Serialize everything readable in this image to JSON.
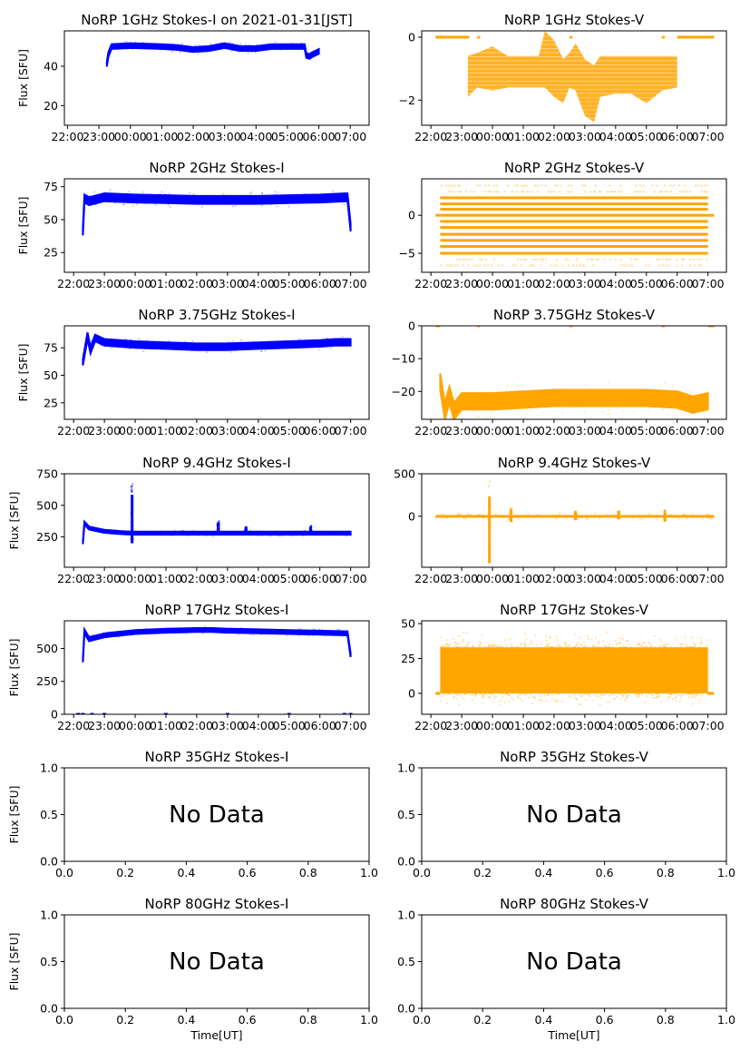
{
  "figure": {
    "date_label": "2021-01-31[JST]",
    "xlabel_bottom": "Time[UT]",
    "ylabel": "Flux [SFU]",
    "no_data_text": "No Data",
    "colors": {
      "stokes_i": "#0000ff",
      "stokes_v": "#ffa500",
      "axis": "#000000"
    }
  },
  "chart_data": [
    {
      "type": "scatter",
      "panel": "1GHz-I",
      "title": "NoRP 1GHz Stokes-I on 2021-01-31[JST]",
      "ylabel": "Flux [SFU]",
      "xlabel": "",
      "xticks": [
        "22:00",
        "23:00",
        "00:00",
        "01:00",
        "02:00",
        "03:00",
        "04:00",
        "05:00",
        "06:00",
        "07:00"
      ],
      "yticks": [
        20,
        40
      ],
      "ylim": [
        10,
        58
      ],
      "xlim_hours": [
        -0.1,
        9.6
      ],
      "series": [
        {
          "name": "Stokes-I",
          "x_hours": [
            1.25,
            1.3,
            1.4,
            2,
            3,
            3.5,
            4,
            4.5,
            5,
            5.5,
            6,
            6.5,
            7,
            7.5,
            7.55,
            7.6,
            7.7,
            7.8,
            8.0
          ],
          "y": [
            41,
            46,
            50,
            50.5,
            50,
            49.5,
            48.5,
            49,
            50.5,
            49,
            49,
            50,
            50,
            50,
            50,
            45.5,
            45,
            46,
            47.5
          ],
          "spread": 1.2
        }
      ]
    },
    {
      "type": "scatter",
      "panel": "1GHz-V",
      "title": "NoRP 1GHz Stokes-V",
      "ylabel": "",
      "xlabel": "",
      "xticks": [
        "22:00",
        "23:00",
        "00:00",
        "01:00",
        "02:00",
        "03:00",
        "04:00",
        "05:00",
        "06:00",
        "07:00"
      ],
      "yticks": [
        0,
        -2
      ],
      "ylim": [
        -2.8,
        0.2
      ],
      "xlim_hours": [
        -0.3,
        9.6
      ],
      "series": [
        {
          "name": "Stokes-V zero segments",
          "segments_hours": [
            [
              0.15,
              1.25
            ],
            [
              1.5,
              1.6
            ],
            [
              4.5,
              4.6
            ],
            [
              7.5,
              7.6
            ],
            [
              8.0,
              9.2
            ]
          ],
          "y": 0
        },
        {
          "name": "Stokes-V",
          "x_hours": [
            1.2,
            1.5,
            2,
            2.5,
            3,
            3.5,
            3.7,
            4,
            4.3,
            4.5,
            4.7,
            5,
            5.3,
            5.5,
            6,
            6.5,
            7,
            7.5,
            8.0
          ],
          "ymax": [
            -0.6,
            -0.5,
            -0.3,
            -0.6,
            -0.6,
            -0.6,
            0.2,
            -0.1,
            -0.7,
            -0.5,
            -0.2,
            -0.7,
            -0.9,
            -0.6,
            -0.6,
            -0.6,
            -0.6,
            -0.6,
            -0.6
          ],
          "ymin": [
            -1.9,
            -1.6,
            -1.7,
            -1.6,
            -1.6,
            -1.6,
            -1.6,
            -1.9,
            -2.1,
            -1.6,
            -1.7,
            -2.5,
            -2.7,
            -1.9,
            -1.8,
            -1.8,
            -2.1,
            -1.7,
            -1.6
          ]
        }
      ]
    },
    {
      "type": "scatter",
      "panel": "2GHz-I",
      "title": "NoRP 2GHz Stokes-I",
      "ylabel": "Flux [SFU]",
      "xlabel": "",
      "xticks": [
        "22:00",
        "23:00",
        "00:00",
        "01:00",
        "02:00",
        "03:00",
        "04:00",
        "05:00",
        "06:00",
        "07:00"
      ],
      "yticks": [
        25,
        50,
        75
      ],
      "ylim": [
        10,
        81
      ],
      "xlim_hours": [
        -0.3,
        9.6
      ],
      "series": [
        {
          "name": "Stokes-I",
          "x_hours": [
            0.3,
            0.35,
            0.5,
            1.0,
            2,
            3,
            4,
            5,
            6,
            7,
            8,
            8.9,
            9.0
          ],
          "y": [
            41,
            66,
            64,
            67,
            66,
            65.5,
            65,
            65,
            65,
            65.5,
            66,
            67,
            44
          ],
          "spread": 3
        }
      ]
    },
    {
      "type": "scatter",
      "panel": "2GHz-V",
      "title": "NoRP 2GHz Stokes-V",
      "ylabel": "",
      "xlabel": "",
      "xticks": [
        "22:00",
        "23:00",
        "00:00",
        "01:00",
        "02:00",
        "03:00",
        "04:00",
        "05:00",
        "06:00",
        "07:00"
      ],
      "yticks": [
        0,
        -5
      ],
      "ylim": [
        -7.5,
        4.8
      ],
      "xlim_hours": [
        -0.3,
        9.6
      ],
      "series": [
        {
          "name": "Stokes-V levels",
          "x_range_hours": [
            0.3,
            9.0
          ],
          "levels": [
            2.3,
            1.5,
            0.8,
            0,
            -0.8,
            -1.6,
            -2.5,
            -3.3,
            -4.1,
            -5.0
          ],
          "sparse_levels": [
            3.1,
            3.9,
            -5.8,
            -6.6
          ]
        },
        {
          "name": "Stokes-V zero segments",
          "segments_hours": [
            [
              0.15,
              0.3
            ],
            [
              9.0,
              9.2
            ]
          ],
          "y": 0
        }
      ]
    },
    {
      "type": "scatter",
      "panel": "3.75GHz-I",
      "title": "NoRP 3.75GHz Stokes-I",
      "ylabel": "Flux [SFU]",
      "xlabel": "",
      "xticks": [
        "22:00",
        "23:00",
        "00:00",
        "01:00",
        "02:00",
        "03:00",
        "04:00",
        "05:00",
        "06:00",
        "07:00"
      ],
      "yticks": [
        25,
        50,
        75
      ],
      "ylim": [
        10,
        95
      ],
      "xlim_hours": [
        -0.3,
        9.6
      ],
      "series": [
        {
          "name": "Stokes-I",
          "x_hours": [
            0.3,
            0.45,
            0.55,
            0.7,
            1.0,
            1.5,
            2,
            3,
            4,
            5,
            6,
            7,
            8,
            8.5,
            9.0
          ],
          "y": [
            62,
            86,
            73,
            84,
            80,
            79,
            78,
            77,
            76,
            76,
            77,
            78,
            79,
            80,
            80
          ],
          "spread": 3
        }
      ]
    },
    {
      "type": "scatter",
      "panel": "3.75GHz-V",
      "title": "NoRP 3.75GHz Stokes-V",
      "ylabel": "",
      "xlabel": "",
      "xticks": [
        "22:00",
        "23:00",
        "00:00",
        "01:00",
        "02:00",
        "03:00",
        "04:00",
        "05:00",
        "06:00",
        "07:00"
      ],
      "yticks": [
        0,
        -10,
        -20
      ],
      "ylim": [
        -28.5,
        0
      ],
      "xlim_hours": [
        -0.3,
        9.6
      ],
      "series": [
        {
          "name": "Stokes-V",
          "x_hours": [
            0.3,
            0.45,
            0.6,
            0.75,
            1,
            2,
            3,
            4,
            5,
            6,
            7,
            8,
            8.5,
            9.0
          ],
          "y": [
            -17,
            -26,
            -21,
            -26,
            -23,
            -23,
            -22.5,
            -22,
            -22,
            -22,
            -22,
            -22.5,
            -24,
            -23
          ],
          "spread": 2.5
        },
        {
          "name": "Stokes-V zero segments",
          "segments_hours": [
            [
              0.15,
              0.3
            ],
            [
              1.5,
              1.6
            ],
            [
              4.5,
              4.6
            ],
            [
              7.5,
              7.6
            ],
            [
              9.0,
              9.2
            ]
          ],
          "y": 0
        }
      ]
    },
    {
      "type": "scatter",
      "panel": "9.4GHz-I",
      "title": "NoRP 9.4GHz Stokes-I",
      "ylabel": "Flux [SFU]",
      "xlabel": "",
      "xticks": [
        "22:00",
        "23:00",
        "00:00",
        "01:00",
        "02:00",
        "03:00",
        "04:00",
        "05:00",
        "06:00",
        "07:00"
      ],
      "yticks": [
        250,
        500,
        750
      ],
      "ylim": [
        10,
        750
      ],
      "xlim_hours": [
        -0.3,
        9.6
      ],
      "series": [
        {
          "name": "Stokes-I",
          "x_hours": [
            0.3,
            0.35,
            0.5,
            1.0,
            1.5,
            1.9,
            2,
            3,
            4,
            5,
            6,
            7,
            8,
            9.0
          ],
          "y": [
            205,
            360,
            320,
            295,
            285,
            280,
            280,
            280,
            280,
            280,
            280,
            280,
            280,
            280
          ],
          "spread": 12
        },
        {
          "name": "Stokes-I spikes",
          "x_hours": [
            1.9,
            4.7,
            5.6,
            7.7
          ],
          "peak": [
            680,
            380,
            330,
            340
          ],
          "low": [
            200,
            280,
            280,
            280
          ]
        }
      ]
    },
    {
      "type": "scatter",
      "panel": "9.4GHz-V",
      "title": "NoRP 9.4GHz Stokes-V",
      "ylabel": "",
      "xlabel": "",
      "xticks": [
        "22:00",
        "23:00",
        "00:00",
        "01:00",
        "02:00",
        "03:00",
        "04:00",
        "05:00",
        "06:00",
        "07:00"
      ],
      "yticks": [
        0,
        500
      ],
      "ylim": [
        -600,
        500
      ],
      "xlim_hours": [
        -0.3,
        9.6
      ],
      "series": [
        {
          "name": "Stokes-V",
          "x_range_hours": [
            0.15,
            9.2
          ],
          "y": 0,
          "spread": 15
        },
        {
          "name": "Stokes-V spikes",
          "x_hours": [
            1.9,
            2.6,
            4.7,
            6.1,
            7.6
          ],
          "peak": [
            430,
            100,
            60,
            60,
            70
          ],
          "low": [
            -550,
            -60,
            -40,
            -30,
            -60
          ]
        }
      ]
    },
    {
      "type": "scatter",
      "panel": "17GHz-I",
      "title": "NoRP 17GHz Stokes-I",
      "ylabel": "Flux [SFU]",
      "xlabel": "",
      "xticks": [
        "22:00",
        "23:00",
        "00:00",
        "01:00",
        "02:00",
        "03:00",
        "04:00",
        "05:00",
        "06:00",
        "07:00"
      ],
      "yticks": [
        0,
        250,
        500
      ],
      "ylim": [
        0,
        710
      ],
      "xlim_hours": [
        -0.3,
        9.6
      ],
      "series": [
        {
          "name": "Stokes-I",
          "x_hours": [
            0.3,
            0.35,
            0.5,
            1.0,
            2,
            3,
            4,
            4.5,
            5,
            6,
            7,
            8,
            8.9,
            9.0
          ],
          "y": [
            410,
            630,
            570,
            600,
            625,
            635,
            640,
            640,
            635,
            630,
            625,
            620,
            615,
            450
          ],
          "spread": 15
        },
        {
          "name": "Stokes-I zero marks",
          "x_hours": [
            0.15,
            0.3,
            0.6,
            1.0,
            3.0,
            5.0,
            7.0,
            8.8,
            9.0
          ],
          "y": 0
        }
      ]
    },
    {
      "type": "scatter",
      "panel": "17GHz-V",
      "title": "NoRP 17GHz Stokes-V",
      "ylabel": "",
      "xlabel": "",
      "xticks": [
        "22:00",
        "23:00",
        "00:00",
        "01:00",
        "02:00",
        "03:00",
        "04:00",
        "05:00",
        "06:00",
        "07:00"
      ],
      "yticks": [
        0,
        25,
        50
      ],
      "ylim": [
        -15,
        52
      ],
      "xlim_hours": [
        -0.3,
        9.6
      ],
      "series": [
        {
          "name": "Stokes-V",
          "x_range_hours": [
            0.3,
            9.0
          ],
          "ymin": 0,
          "ymax": 33,
          "scatter_min": -10,
          "scatter_max": 45
        },
        {
          "name": "Stokes-V zero segments",
          "segments_hours": [
            [
              0.15,
              0.3
            ],
            [
              9.0,
              9.2
            ]
          ],
          "y": 0
        }
      ]
    },
    {
      "type": "scatter",
      "panel": "35GHz-I",
      "title": "NoRP 35GHz Stokes-I",
      "ylabel": "Flux [SFU]",
      "xlabel": "",
      "xticks": [
        "0.0",
        "0.2",
        "0.4",
        "0.6",
        "0.8",
        "1.0"
      ],
      "yticks": [
        "0.0",
        "0.5",
        "1.0"
      ],
      "ylim": [
        0,
        1
      ],
      "xlim": [
        0,
        1
      ],
      "annotation": "No Data",
      "series": []
    },
    {
      "type": "scatter",
      "panel": "35GHz-V",
      "title": "NoRP 35GHz Stokes-V",
      "ylabel": "",
      "xlabel": "",
      "xticks": [
        "0.0",
        "0.2",
        "0.4",
        "0.6",
        "0.8",
        "1.0"
      ],
      "yticks": [
        "0.0",
        "0.5",
        "1.0"
      ],
      "ylim": [
        0,
        1
      ],
      "xlim": [
        0,
        1
      ],
      "annotation": "No Data",
      "series": []
    },
    {
      "type": "scatter",
      "panel": "80GHz-I",
      "title": "NoRP 80GHz Stokes-I",
      "ylabel": "Flux [SFU]",
      "xlabel": "Time[UT]",
      "xticks": [
        "0.0",
        "0.2",
        "0.4",
        "0.6",
        "0.8",
        "1.0"
      ],
      "yticks": [
        "0.0",
        "0.5",
        "1.0"
      ],
      "ylim": [
        0,
        1
      ],
      "xlim": [
        0,
        1
      ],
      "annotation": "No Data",
      "series": []
    },
    {
      "type": "scatter",
      "panel": "80GHz-V",
      "title": "NoRP 80GHz Stokes-V",
      "ylabel": "",
      "xlabel": "Time[UT]",
      "xticks": [
        "0.0",
        "0.2",
        "0.4",
        "0.6",
        "0.8",
        "1.0"
      ],
      "yticks": [
        "0.0",
        "0.5",
        "1.0"
      ],
      "ylim": [
        0,
        1
      ],
      "xlim": [
        0,
        1
      ],
      "annotation": "No Data",
      "series": []
    }
  ]
}
